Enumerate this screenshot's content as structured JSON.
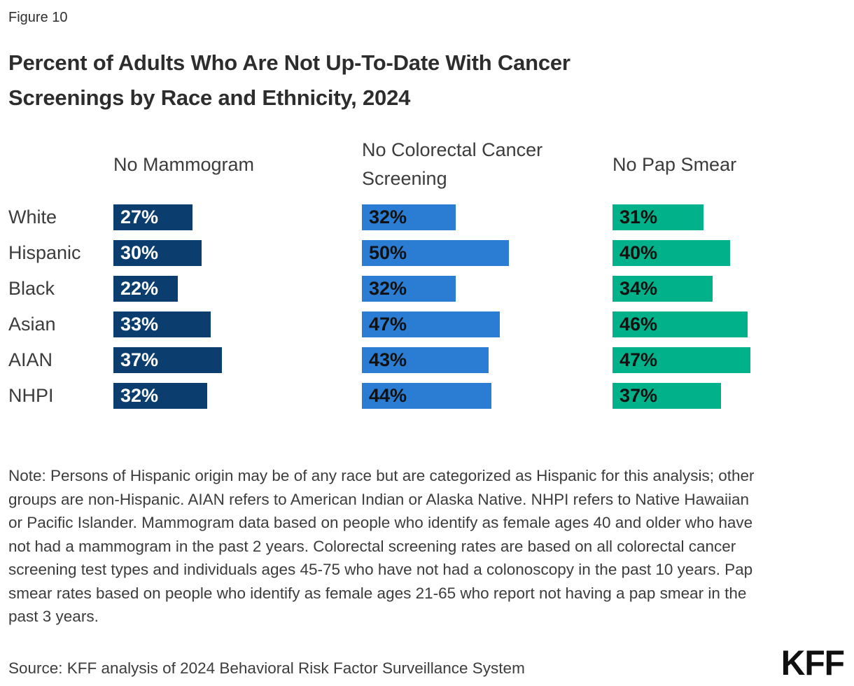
{
  "figure_label": "Figure 10",
  "title": "Percent of Adults Who Are Not Up-To-Date With Cancer Screenings by Race and Ethnicity, 2024",
  "chart_data": {
    "type": "bar",
    "orientation": "horizontal",
    "unit": "percent",
    "value_suffix": "%",
    "categories": [
      "White",
      "Hispanic",
      "Black",
      "Asian",
      "AIAN",
      "NHPI"
    ],
    "series": [
      {
        "name": "No Mammogram",
        "color": "#0B3D6E",
        "label_color": "#FFFFFF",
        "values": [
          27,
          30,
          22,
          33,
          37,
          32
        ]
      },
      {
        "name": "No Colorectal Cancer Screening",
        "color": "#2A7DD2",
        "label_color": "#111111",
        "values": [
          32,
          50,
          32,
          47,
          43,
          44
        ]
      },
      {
        "name": "No Pap Smear",
        "color": "#00B189",
        "label_color": "#111111",
        "values": [
          31,
          40,
          34,
          46,
          47,
          37
        ]
      }
    ],
    "xlim": [
      0,
      60
    ],
    "grid": false,
    "legend_position": "column-headers"
  },
  "note": "Note: Persons of Hispanic origin may be of any race but are categorized as Hispanic for this analysis; other groups are non-Hispanic. AIAN refers to American Indian or Alaska Native. NHPI refers to Native Hawaiian or Pacific Islander. Mammogram data based on people who identify as female ages 40 and older who have not had a mammogram in the past 2 years. Colorectal screening rates are based on all colorectal cancer screening test types and individuals ages 45-75 who have not had a colonoscopy in the past 10 years. Pap smear rates based on people who identify as female ages 21-65 who report not having a pap smear in the past 3 years.",
  "source": "Source: KFF analysis of 2024 Behavioral Risk Factor Surveillance System",
  "logo": "KFF"
}
